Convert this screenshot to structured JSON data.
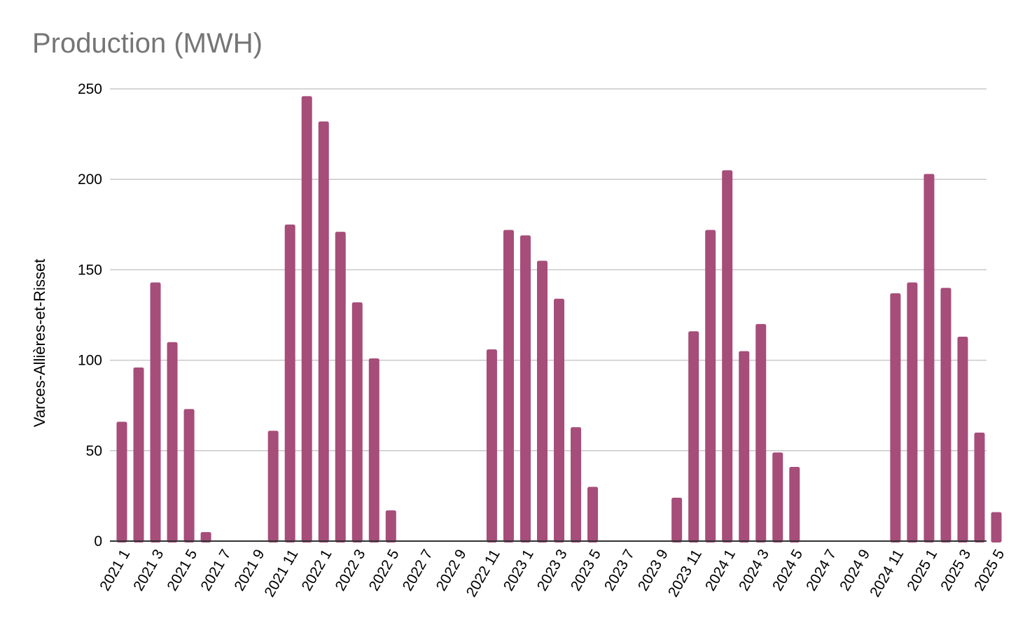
{
  "chart_data": {
    "type": "bar",
    "title": "Production (MWH)",
    "xlabel": "",
    "ylabel": "Varces-Allières-et-Risset",
    "ylim": [
      0,
      250
    ],
    "yticks": [
      0,
      50,
      100,
      150,
      200,
      250
    ],
    "grid": true,
    "legend": "none",
    "bar_color": "#a64d79",
    "categories": [
      "2021 1",
      "2021 2",
      "2021 3",
      "2021 4",
      "2021 5",
      "2021 6",
      "2021 7",
      "2021 8",
      "2021 9",
      "2021 10",
      "2021 11",
      "2021 12",
      "2022 1",
      "2022 2",
      "2022 3",
      "2022 4",
      "2022 5",
      "2022 6",
      "2022 7",
      "2022 8",
      "2022 9",
      "2022 10",
      "2022 11",
      "2022 12",
      "2023 1",
      "2023 2",
      "2023 3",
      "2023 4",
      "2023 5",
      "2023 6",
      "2023 7",
      "2023 8",
      "2023 9",
      "2023 10",
      "2023 11",
      "2023 12",
      "2024 1",
      "2024 2",
      "2024 3",
      "2024 4",
      "2024 5",
      "2024 6",
      "2024 7",
      "2024 8",
      "2024 9",
      "2024 10",
      "2024 11",
      "2024 12",
      "2025 1",
      "2025 2",
      "2025 3",
      "2025 4",
      "2025 5"
    ],
    "tick_labels": [
      "2021 1",
      "",
      "2021 3",
      "",
      "2021 5",
      "",
      "2021 7",
      "",
      "2021 9",
      "",
      "2021 11",
      "",
      "2022 1",
      "",
      "2022 3",
      "",
      "2022 5",
      "",
      "2022 7",
      "",
      "2022 9",
      "",
      "2022 11",
      "",
      "2023 1",
      "",
      "2023 3",
      "",
      "2023 5",
      "",
      "2023 7",
      "",
      "2023 9",
      "",
      "2023 11",
      "",
      "2024 1",
      "",
      "2024 3",
      "",
      "2024 5",
      "",
      "2024 7",
      "",
      "2024 9",
      "",
      "2024 11",
      "",
      "2025 1",
      "",
      "2025 3",
      "",
      "2025 5"
    ],
    "values": [
      66,
      96,
      143,
      110,
      73,
      5,
      0,
      0,
      0,
      61,
      175,
      246,
      232,
      171,
      132,
      101,
      17,
      0,
      0,
      0,
      0,
      0,
      106,
      172,
      169,
      155,
      134,
      63,
      30,
      0,
      0,
      0,
      0,
      24,
      116,
      172,
      205,
      105,
      120,
      49,
      41,
      0,
      0,
      0,
      0,
      0,
      137,
      143,
      203,
      140,
      113,
      60,
      16
    ]
  }
}
